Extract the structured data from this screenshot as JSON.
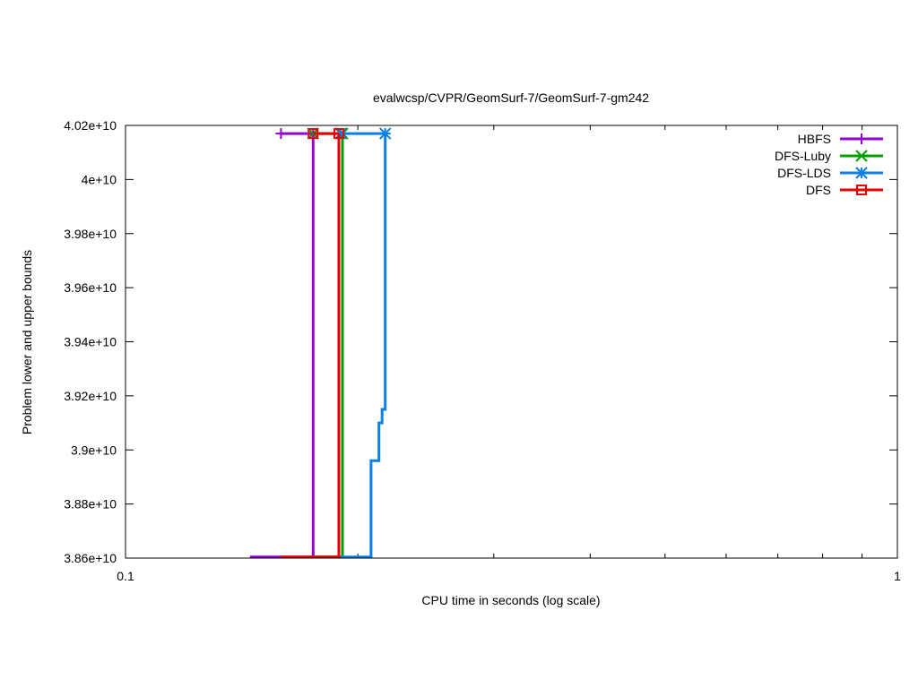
{
  "chart_data": {
    "type": "line",
    "title": "evalwcsp/CVPR/GeomSurf-7/GeomSurf-7-gm242",
    "xlabel": "CPU time in seconds (log scale)",
    "ylabel": "Problem lower and upper bounds",
    "x_scale": "log",
    "xlim": [
      0.1,
      1
    ],
    "ylim": [
      38600000000,
      40200000000
    ],
    "x_ticks": [
      {
        "value": 0.1,
        "label": "0.1"
      },
      {
        "value": 1,
        "label": "1"
      }
    ],
    "y_ticks": [
      {
        "value": 38600000000,
        "label": "3.86e+10"
      },
      {
        "value": 38800000000,
        "label": "3.88e+10"
      },
      {
        "value": 39000000000,
        "label": "3.9e+10"
      },
      {
        "value": 39200000000,
        "label": "3.92e+10"
      },
      {
        "value": 39400000000,
        "label": "3.94e+10"
      },
      {
        "value": 39600000000,
        "label": "3.96e+10"
      },
      {
        "value": 39800000000,
        "label": "3.98e+10"
      },
      {
        "value": 40000000000,
        "label": "4e+10"
      },
      {
        "value": 40200000000,
        "label": "4.02e+10"
      }
    ],
    "legend_position": "top-right",
    "series": [
      {
        "name": "HBFS",
        "color": "#9400d3",
        "marker": "plus",
        "lower": [
          [
            0.145,
            38604000000
          ],
          [
            0.175,
            38604000000
          ],
          [
            0.175,
            40170000000
          ]
        ],
        "upper": [
          [
            0.159,
            40170000000
          ],
          [
            0.175,
            40170000000
          ]
        ]
      },
      {
        "name": "DFS-Luby",
        "color": "#009e00",
        "marker": "cross",
        "lower": [
          [
            0.175,
            38604000000
          ],
          [
            0.191,
            38604000000
          ],
          [
            0.191,
            40170000000
          ]
        ],
        "upper": [
          [
            0.175,
            40170000000
          ],
          [
            0.191,
            40170000000
          ]
        ]
      },
      {
        "name": "DFS-LDS",
        "color": "#0a7fe6",
        "marker": "star",
        "lower": [
          [
            0.19,
            38604000000
          ],
          [
            0.208,
            38604000000
          ],
          [
            0.208,
            38960000000
          ],
          [
            0.213,
            38960000000
          ],
          [
            0.213,
            39100000000
          ],
          [
            0.215,
            39100000000
          ],
          [
            0.215,
            39150000000
          ],
          [
            0.217,
            39150000000
          ],
          [
            0.217,
            40170000000
          ]
        ],
        "upper": [
          [
            0.19,
            40170000000
          ],
          [
            0.217,
            40170000000
          ]
        ]
      },
      {
        "name": "DFS",
        "color": "#e60000",
        "marker": "square",
        "lower": [
          [
            0.159,
            38604000000
          ],
          [
            0.189,
            38604000000
          ],
          [
            0.189,
            40170000000
          ]
        ],
        "upper": [
          [
            0.175,
            40170000000
          ],
          [
            0.189,
            40170000000
          ]
        ]
      }
    ]
  }
}
